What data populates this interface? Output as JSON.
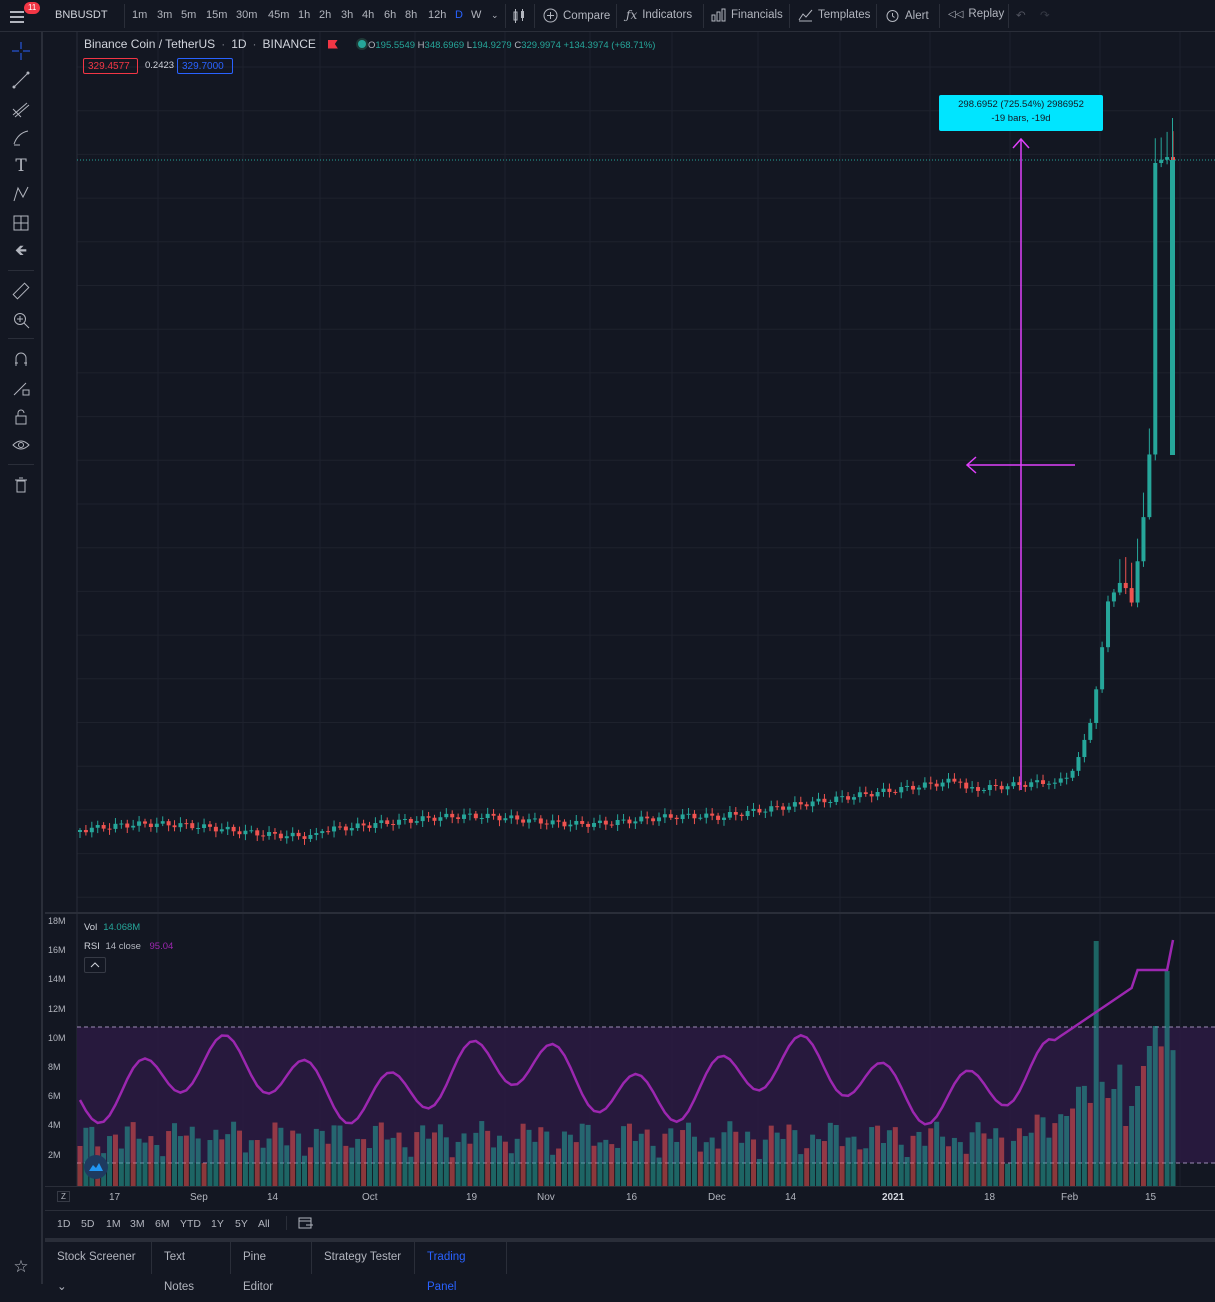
{
  "topbar": {
    "notification_count": "11",
    "symbol": "BNBUSDT",
    "timeframes": [
      "1m",
      "3m",
      "5m",
      "15m",
      "30m",
      "45m",
      "1h",
      "2h",
      "3h",
      "4h",
      "6h",
      "8h",
      "12h",
      "D",
      "W"
    ],
    "active_timeframe": "D",
    "compare_label": "Compare",
    "indicators_label": "Indicators",
    "financials_label": "Financials",
    "templates_label": "Templates",
    "alert_label": "Alert",
    "replay_label": "Replay"
  },
  "legend": {
    "title": "Binance Coin / TetherUS",
    "interval": "1D",
    "exchange": "BINANCE",
    "open_label": "O",
    "open": "195.5549",
    "high_label": "H",
    "high": "348.6969",
    "low_label": "L",
    "low": "194.9279",
    "close_label": "C",
    "close": "329.9974",
    "change": "+134.3974 (+68.71%)",
    "sell_price": "329.4577",
    "spread": "0.2423",
    "buy_price": "329.7000"
  },
  "measure_tooltip": {
    "line1": "298.6952 (725.54%) 2986952",
    "line2": "-19 bars, -19d"
  },
  "indicators": {
    "vol_label": "Vol",
    "vol_value": "14.068M",
    "rsi_label": "RSI",
    "rsi_params": "14 close",
    "rsi_value": "95.04"
  },
  "volume_axis": [
    "18M",
    "16M",
    "14M",
    "12M",
    "10M",
    "8M",
    "6M",
    "4M",
    "2M"
  ],
  "time_axis": [
    "17",
    "Sep",
    "14",
    "Oct",
    "19",
    "Nov",
    "16",
    "Dec",
    "14",
    "2021",
    "18",
    "Feb",
    "15"
  ],
  "axis_z_label": "Z",
  "ranges": [
    "1D",
    "5D",
    "1M",
    "3M",
    "6M",
    "YTD",
    "1Y",
    "5Y",
    "All"
  ],
  "bottom_tabs": [
    "Stock Screener",
    "Text Notes",
    "Pine Editor",
    "Strategy Tester",
    "Trading Panel"
  ],
  "active_bottom_tab": "Trading Panel",
  "colors": {
    "up": "#26a69a",
    "down": "#ef5350",
    "rsi": "#9c27b0",
    "measure": "#e040fb",
    "tooltip": "#00e5ff",
    "accent": "#2962ff"
  },
  "icons": {
    "crosshair": "crosshair-icon",
    "trendline": "trendline-icon",
    "fib": "fib-icon",
    "brush": "brush-icon",
    "text": "text-icon",
    "pattern": "pattern-icon",
    "prediction": "prediction-icon",
    "back": "back-arrow-icon",
    "ruler": "ruler-icon",
    "zoom": "zoom-in-icon",
    "magnet": "magnet-icon",
    "lock-draw": "stay-drawing-icon",
    "lock": "lock-icon",
    "eye": "eye-icon",
    "trash": "trash-icon"
  }
}
